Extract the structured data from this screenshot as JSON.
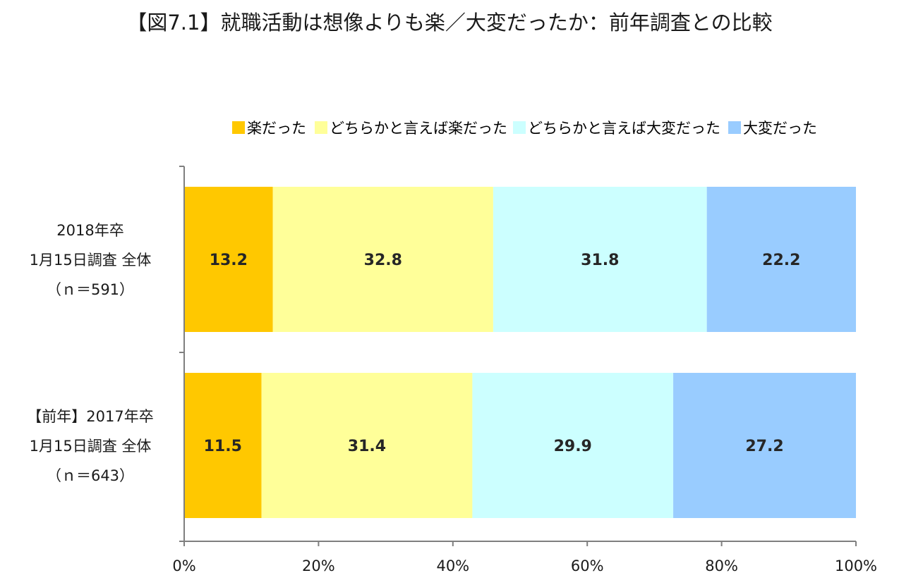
{
  "chart_data": {
    "type": "bar",
    "orientation": "horizontal",
    "stacked": true,
    "title": "【図7.1】就職活動は想像よりも楽／大変だったか：前年調査との比較",
    "categories": [
      [
        "2018年卒",
        "1月15日調査 全体",
        "（ｎ＝591）"
      ],
      [
        "【前年】2017年卒",
        "1月15日調査 全体",
        "（ｎ＝643）"
      ]
    ],
    "series": [
      {
        "name": "楽だった",
        "color": "#ffc800",
        "values": [
          13.2,
          11.5
        ]
      },
      {
        "name": "どちらかと言えば楽だった",
        "color": "#ffff99",
        "values": [
          32.8,
          31.4
        ]
      },
      {
        "name": "どちらかと言えば大変だった",
        "color": "#ccffff",
        "values": [
          31.8,
          29.9
        ]
      },
      {
        "name": "大変だった",
        "color": "#99ccff",
        "values": [
          22.2,
          27.2
        ]
      }
    ],
    "xlim": [
      0,
      100
    ],
    "xticks": [
      "0%",
      "20%",
      "40%",
      "60%",
      "80%",
      "100%"
    ],
    "legend_position": "top",
    "grid": false
  }
}
